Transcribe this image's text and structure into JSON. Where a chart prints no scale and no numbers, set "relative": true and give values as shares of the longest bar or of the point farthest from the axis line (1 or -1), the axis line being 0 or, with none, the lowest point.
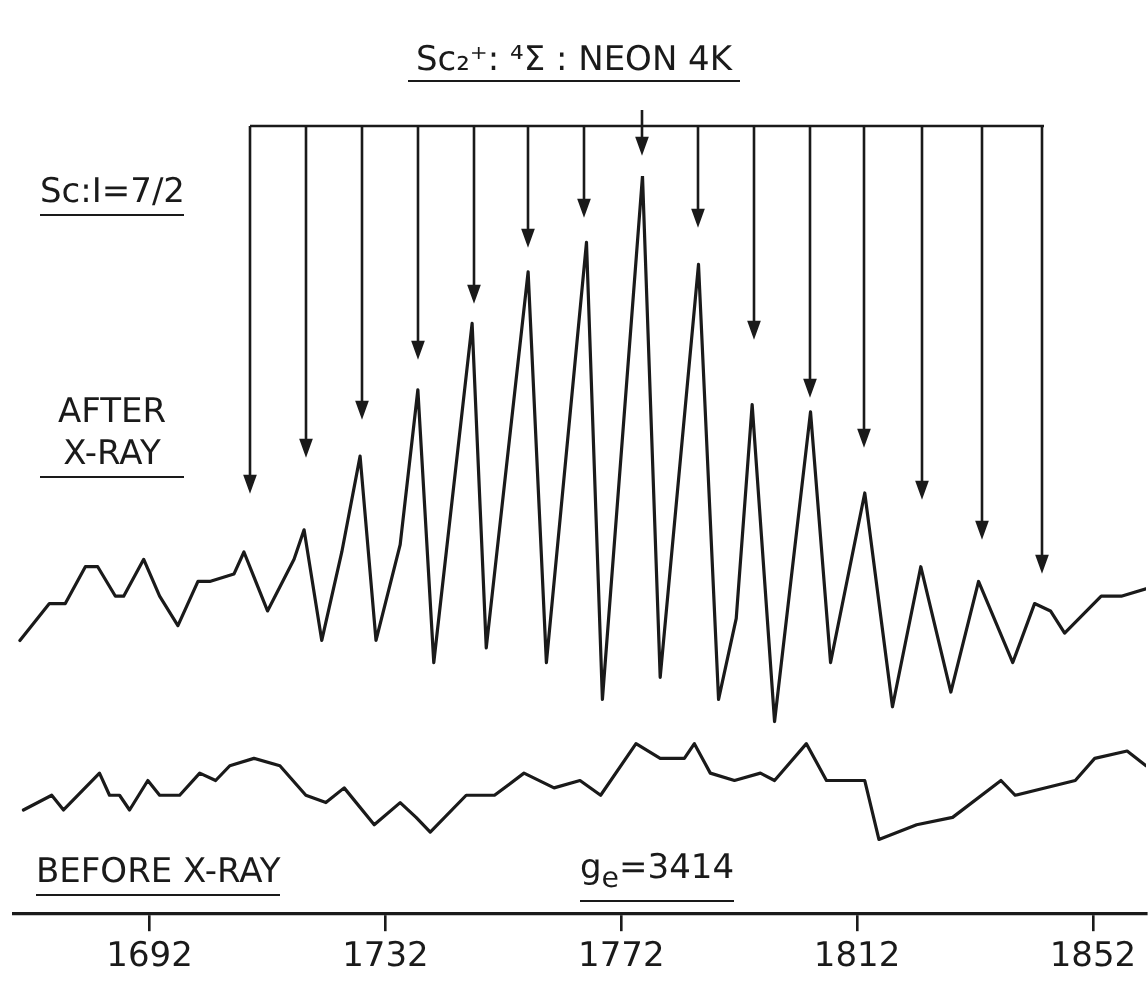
{
  "chart_data": {
    "type": "line",
    "title": "Sc₂⁺: ⁴Σ : NEON 4K",
    "relative": true,
    "legend": false,
    "grid": false,
    "xlim": [
      1669,
      1861
    ],
    "xticks": [
      1692,
      1732,
      1772,
      1812,
      1852
    ],
    "annotations": [
      "Sc:I=7/2",
      "g$_{e}$=3414"
    ],
    "series": [
      {
        "name": "AFTER X-RAY",
        "color": "#1a1a1a",
        "x": [
          1670,
          1675,
          1677.7,
          1681.1,
          1683.2,
          1686.2,
          1687.6,
          1691,
          1693.7,
          1696.8,
          1700.2,
          1702.2,
          1706.3,
          1708,
          1712,
          1716.5,
          1718.2,
          1721.2,
          1724.6,
          1727.7,
          1730.4,
          1734.5,
          1737.5,
          1740.2,
          1746.7,
          1749.1,
          1756.2,
          1759.3,
          1766.1,
          1768.8,
          1775.6,
          1778.6,
          1785.1,
          1788.5,
          1791.5,
          1794.2,
          1798,
          1804.1,
          1807.5,
          1813.3,
          1818,
          1822.8,
          1827.9,
          1832.6,
          1838.4,
          1842.1,
          1844.8,
          1847.2,
          1853.4,
          1856.8,
          1861
        ],
        "values": [
          0.37,
          0.42,
          0.42,
          0.47,
          0.47,
          0.43,
          0.43,
          0.48,
          0.43,
          0.39,
          0.45,
          0.45,
          0.46,
          0.49,
          0.41,
          0.48,
          0.52,
          0.37,
          0.49,
          0.62,
          0.37,
          0.5,
          0.71,
          0.34,
          0.8,
          0.36,
          0.87,
          0.34,
          0.91,
          0.29,
          1,
          0.32,
          0.88,
          0.29,
          0.4,
          0.69,
          0.26,
          0.68,
          0.34,
          0.57,
          0.28,
          0.47,
          0.3,
          0.45,
          0.34,
          0.42,
          0.41,
          0.38,
          0.43,
          0.43,
          0.44
        ]
      },
      {
        "name": "BEFORE X-RAY",
        "color": "#1a1a1a",
        "x": [
          1670.6,
          1675.4,
          1677.4,
          1683.5,
          1685.2,
          1686.9,
          1688.6,
          1691.7,
          1693.7,
          1697.1,
          1700.5,
          1703.2,
          1705.6,
          1709.7,
          1714.1,
          1718.5,
          1721.9,
          1725,
          1730.1,
          1734.5,
          1737.2,
          1739.6,
          1745.7,
          1750.5,
          1755.5,
          1760.6,
          1765,
          1768.5,
          1774.5,
          1778.6,
          1782.7,
          1784.4,
          1787.1,
          1791.2,
          1795.6,
          1798,
          1803.4,
          1806.8,
          1813.3,
          1815.7,
          1822.1,
          1828.2,
          1836.4,
          1838.8,
          1849,
          1852.3,
          1857.8,
          1861
        ],
        "values": [
          0.14,
          0.16,
          0.14,
          0.19,
          0.16,
          0.16,
          0.14,
          0.18,
          0.16,
          0.16,
          0.19,
          0.18,
          0.2,
          0.21,
          0.2,
          0.16,
          0.15,
          0.17,
          0.12,
          0.15,
          0.13,
          0.11,
          0.16,
          0.16,
          0.19,
          0.17,
          0.18,
          0.16,
          0.23,
          0.21,
          0.21,
          0.23,
          0.19,
          0.18,
          0.19,
          0.18,
          0.23,
          0.18,
          0.18,
          0.1,
          0.12,
          0.13,
          0.18,
          0.16,
          0.18,
          0.21,
          0.22,
          0.2
        ]
      }
    ]
  }
}
